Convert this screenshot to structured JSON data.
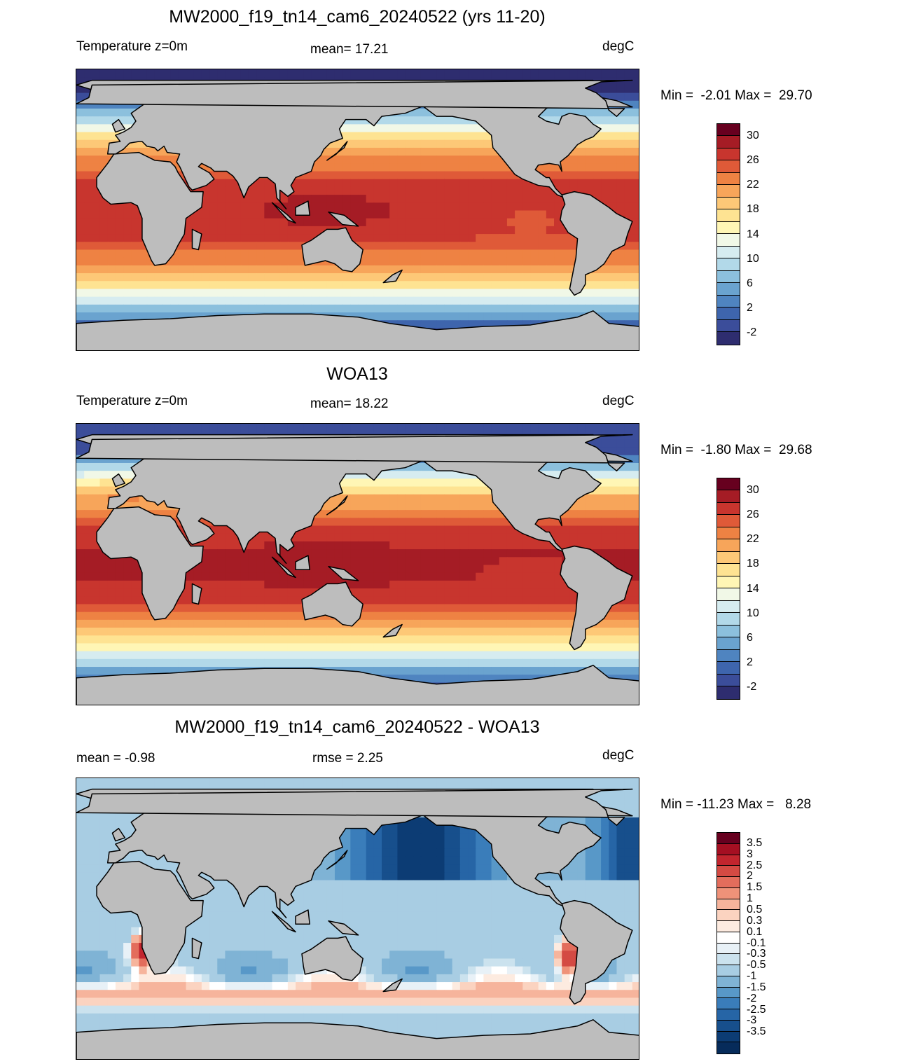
{
  "panels": [
    {
      "title": "MW2000_f19_tn14_cam6_20240522 (yrs 11-20)",
      "left_label": "Temperature z=0m",
      "center_label": "mean=  17.21",
      "right_label": "degC",
      "minmax": "Min =  -2.01 Max =  29.70",
      "field": "model"
    },
    {
      "title": "WOA13",
      "left_label": "Temperature z=0m",
      "center_label": "mean=  18.22",
      "right_label": "degC",
      "minmax": "Min =  -1.80 Max =  29.68",
      "field": "obs"
    },
    {
      "title": "MW2000_f19_tn14_cam6_20240522 - WOA13",
      "left_label": "mean =  -0.98",
      "center_label": "rmse =   2.25",
      "right_label": "degC",
      "minmax": "Min = -11.23 Max =   8.28",
      "field": "diff"
    }
  ],
  "temp_colorbar": {
    "colors": [
      "#67001f",
      "#a51c25",
      "#c8352e",
      "#df5a38",
      "#ee8243",
      "#f7a55a",
      "#fdc877",
      "#fee392",
      "#fff6b5",
      "#f1f8e7",
      "#d6ecf0",
      "#b2d9e9",
      "#8cc0dd",
      "#6aa3cf",
      "#4f84c0",
      "#3e65ad",
      "#3b4d9a",
      "#2e2d6f"
    ],
    "labels": [
      "30",
      "26",
      "22",
      "18",
      "14",
      "10",
      "6",
      "2",
      "-2"
    ]
  },
  "diff_colorbar": {
    "colors": [
      "#67001f",
      "#a50f22",
      "#c2252e",
      "#d44a43",
      "#e36d5c",
      "#ef9279",
      "#f6b49c",
      "#fbd3c0",
      "#fdebe0",
      "#ffffff",
      "#e8f1f7",
      "#cbe2ee",
      "#a8cde3",
      "#7fb3d5",
      "#5898c8",
      "#3a7dba",
      "#2665a6",
      "#174f8c",
      "#0c3c74",
      "#062b5a"
    ],
    "labels": [
      "3.5",
      "3",
      "2.5",
      "2",
      "1.5",
      "1",
      "0.5",
      "0.3",
      "0.1",
      "-0.1",
      "-0.3",
      "-0.5",
      "-1",
      "-1.5",
      "-2",
      "-2.5",
      "-3",
      "-3.5"
    ]
  },
  "colors": {
    "land": "#bdbdbd",
    "coastline": "#000000"
  }
}
